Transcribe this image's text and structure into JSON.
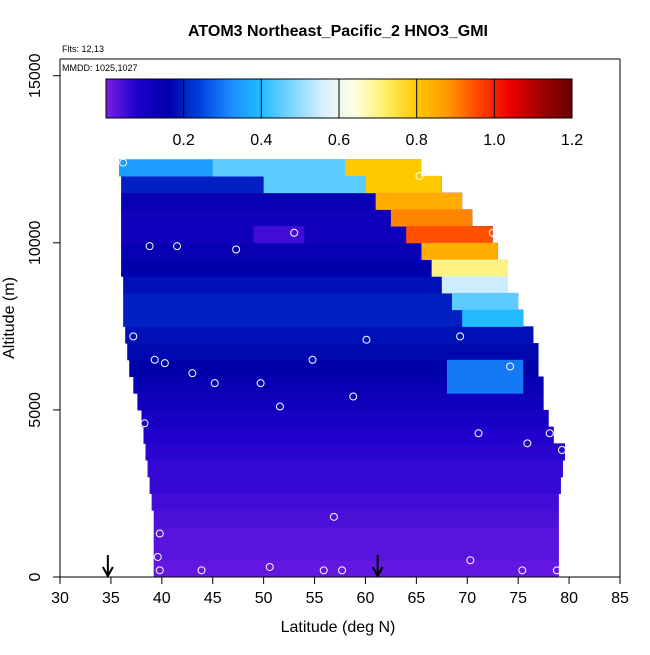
{
  "chart_data": {
    "type": "heatmap",
    "title": "ATOM3 Northeast_Pacific_2 HNO3_GMI",
    "annotations": [
      "Flts: 12,13",
      "MMDD: 1025,1027"
    ],
    "xlabel": "Latitude (deg N)",
    "ylabel": "Altitude (m)",
    "xlim": [
      30,
      85
    ],
    "ylim": [
      0,
      15500
    ],
    "xticks": [
      30,
      35,
      40,
      45,
      50,
      55,
      60,
      65,
      70,
      75,
      80,
      85
    ],
    "yticks": [
      0,
      5000,
      10000,
      15000
    ],
    "grid": false,
    "colorbar": {
      "range": [
        0,
        1.2
      ],
      "ticks": [
        "0.2",
        "0.4",
        "0.6",
        "0.8",
        "1.0",
        "1.2"
      ],
      "tick_values": [
        0.2,
        0.4,
        0.6,
        0.8,
        1.0,
        1.2
      ],
      "colors": [
        "#7a1fe6",
        "#1f00cc",
        "#0000aa",
        "#0040dd",
        "#1a8cff",
        "#22bbff",
        "#7fd6ff",
        "#d9f0ff",
        "#ffffe0",
        "#ffee66",
        "#ffc800",
        "#ff9900",
        "#ff4400",
        "#ee0000",
        "#a00000",
        "#6a0000"
      ]
    },
    "arrows_latitude": [
      34.7,
      61.2
    ],
    "altitude_bands": [
      {
        "y0": 0,
        "y1": 500,
        "lat0": 39.2,
        "lat1": 79.0,
        "value": 0.02
      },
      {
        "y0": 500,
        "y1": 1000,
        "lat0": 39.2,
        "lat1": 79.0,
        "value": 0.03
      },
      {
        "y0": 1000,
        "y1": 1500,
        "lat0": 39.2,
        "lat1": 79.0,
        "value": 0.03
      },
      {
        "y0": 1500,
        "y1": 2000,
        "lat0": 39.2,
        "lat1": 79.0,
        "value": 0.04
      },
      {
        "y0": 2000,
        "y1": 2500,
        "lat0": 39.0,
        "lat1": 79.0,
        "value": 0.05
      },
      {
        "y0": 2500,
        "y1": 3000,
        "lat0": 38.8,
        "lat1": 79.2,
        "value": 0.06
      },
      {
        "y0": 3000,
        "y1": 3500,
        "lat0": 38.6,
        "lat1": 79.4,
        "value": 0.06
      },
      {
        "y0": 3500,
        "y1": 4000,
        "lat0": 38.4,
        "lat1": 79.6,
        "value": 0.07
      },
      {
        "y0": 4000,
        "y1": 4500,
        "lat0": 38.2,
        "lat1": 78.5,
        "value": 0.08
      },
      {
        "y0": 4500,
        "y1": 5000,
        "lat0": 38.0,
        "lat1": 78.0,
        "value": 0.1
      },
      {
        "y0": 5000,
        "y1": 5500,
        "lat0": 37.6,
        "lat1": 77.5,
        "value": 0.12
      },
      {
        "y0": 5500,
        "y1": 6000,
        "lat0": 37.2,
        "lat1": 77.5,
        "value": 0.14
      },
      {
        "y0": 6000,
        "y1": 6500,
        "lat0": 36.8,
        "lat1": 77.0,
        "value": 0.16
      },
      {
        "y0": 6500,
        "y1": 7000,
        "lat0": 36.6,
        "lat1": 77.0,
        "value": 0.17
      },
      {
        "y0": 7000,
        "y1": 7500,
        "lat0": 36.4,
        "lat1": 76.5,
        "value": 0.18
      },
      {
        "y0": 7500,
        "y1": 8000,
        "lat0": 36.2,
        "lat1": 75.5,
        "value": 0.2
      },
      {
        "y0": 8000,
        "y1": 8500,
        "lat0": 36.2,
        "lat1": 75.0,
        "value": 0.2
      },
      {
        "y0": 8500,
        "y1": 9000,
        "lat0": 36.2,
        "lat1": 74.0,
        "value": 0.18
      },
      {
        "y0": 9000,
        "y1": 9500,
        "lat0": 36.0,
        "lat1": 74.0,
        "value": 0.16
      },
      {
        "y0": 9500,
        "y1": 10000,
        "lat0": 36.0,
        "lat1": 73.0,
        "value": 0.14
      },
      {
        "y0": 10000,
        "y1": 10500,
        "lat0": 36.0,
        "lat1": 72.5,
        "value": 0.12
      },
      {
        "y0": 10500,
        "y1": 11000,
        "lat0": 36.0,
        "lat1": 70.5,
        "value": 0.12
      },
      {
        "y0": 11000,
        "y1": 11500,
        "lat0": 36.0,
        "lat1": 69.5,
        "value": 0.14
      },
      {
        "y0": 11500,
        "y1": 12000,
        "lat0": 36.0,
        "lat1": 67.5,
        "value": 0.2
      },
      {
        "y0": 12000,
        "y1": 12500,
        "lat0": 35.8,
        "lat1": 65.5,
        "value": 0.35
      }
    ],
    "highlights": [
      {
        "y0": 12000,
        "y1": 12500,
        "lat0": 58.0,
        "lat1": 65.5,
        "value": 0.8
      },
      {
        "y0": 11500,
        "y1": 12000,
        "lat0": 60.0,
        "lat1": 67.5,
        "value": 0.8
      },
      {
        "y0": 11000,
        "y1": 11500,
        "lat0": 61.0,
        "lat1": 69.5,
        "value": 0.85
      },
      {
        "y0": 10500,
        "y1": 11000,
        "lat0": 62.5,
        "lat1": 70.5,
        "value": 0.9
      },
      {
        "y0": 10000,
        "y1": 10500,
        "lat0": 64.0,
        "lat1": 72.5,
        "value": 0.95
      },
      {
        "y0": 9500,
        "y1": 10000,
        "lat0": 65.5,
        "lat1": 73.0,
        "value": 0.85
      },
      {
        "y0": 9000,
        "y1": 9500,
        "lat0": 66.5,
        "lat1": 74.0,
        "value": 0.7
      },
      {
        "y0": 8500,
        "y1": 9000,
        "lat0": 67.5,
        "lat1": 74.0,
        "value": 0.55
      },
      {
        "y0": 8000,
        "y1": 8500,
        "lat0": 68.5,
        "lat1": 75.0,
        "value": 0.45
      },
      {
        "y0": 7500,
        "y1": 8000,
        "lat0": 69.5,
        "lat1": 75.5,
        "value": 0.4
      },
      {
        "y0": 12000,
        "y1": 12500,
        "lat0": 45.0,
        "lat1": 58.0,
        "value": 0.45
      },
      {
        "y0": 11500,
        "y1": 12000,
        "lat0": 50.0,
        "lat1": 60.0,
        "value": 0.45
      },
      {
        "y0": 10000,
        "y1": 10500,
        "lat0": 49.0,
        "lat1": 54.0,
        "value": 0.05
      },
      {
        "y0": 5500,
        "y1": 6500,
        "lat0": 68.0,
        "lat1": 75.5,
        "value": 0.3
      }
    ],
    "observations": [
      {
        "lat": 36.2,
        "alt": 12400
      },
      {
        "lat": 65.3,
        "alt": 12000
      },
      {
        "lat": 38.8,
        "alt": 9900
      },
      {
        "lat": 41.5,
        "alt": 9900
      },
      {
        "lat": 47.3,
        "alt": 9800
      },
      {
        "lat": 53.0,
        "alt": 10300
      },
      {
        "lat": 72.5,
        "alt": 10300
      },
      {
        "lat": 37.2,
        "alt": 7200
      },
      {
        "lat": 60.1,
        "alt": 7100
      },
      {
        "lat": 69.3,
        "alt": 7200
      },
      {
        "lat": 77.3,
        "alt": 7500
      },
      {
        "lat": 39.3,
        "alt": 6500
      },
      {
        "lat": 40.3,
        "alt": 6400
      },
      {
        "lat": 43.0,
        "alt": 6100
      },
      {
        "lat": 45.2,
        "alt": 5800
      },
      {
        "lat": 49.7,
        "alt": 5800
      },
      {
        "lat": 54.8,
        "alt": 6500
      },
      {
        "lat": 74.2,
        "alt": 6300
      },
      {
        "lat": 58.8,
        "alt": 5400
      },
      {
        "lat": 51.6,
        "alt": 5100
      },
      {
        "lat": 38.3,
        "alt": 4600
      },
      {
        "lat": 71.1,
        "alt": 4300
      },
      {
        "lat": 75.9,
        "alt": 4000
      },
      {
        "lat": 78.1,
        "alt": 4300
      },
      {
        "lat": 79.3,
        "alt": 3800
      },
      {
        "lat": 56.9,
        "alt": 1800
      },
      {
        "lat": 39.8,
        "alt": 1300
      },
      {
        "lat": 39.6,
        "alt": 600
      },
      {
        "lat": 39.8,
        "alt": 200
      },
      {
        "lat": 43.9,
        "alt": 200
      },
      {
        "lat": 50.6,
        "alt": 300
      },
      {
        "lat": 55.9,
        "alt": 200
      },
      {
        "lat": 57.7,
        "alt": 200
      },
      {
        "lat": 70.3,
        "alt": 500
      },
      {
        "lat": 75.4,
        "alt": 200
      },
      {
        "lat": 78.8,
        "alt": 200
      }
    ]
  }
}
